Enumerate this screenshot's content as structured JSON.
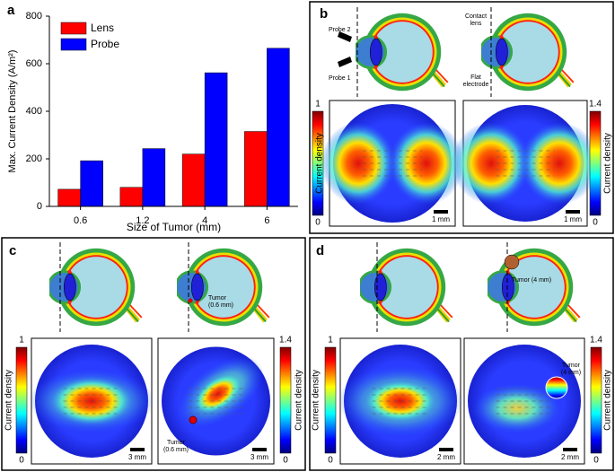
{
  "chart_data": {
    "type": "bar",
    "label": "a",
    "categories": [
      "0.6",
      "1.2",
      "4",
      "6"
    ],
    "series": [
      {
        "name": "Lens",
        "color": "#ff0000",
        "values": [
          72,
          80,
          220,
          315
        ]
      },
      {
        "name": "Probe",
        "color": "#0000ff",
        "values": [
          192,
          243,
          562,
          665
        ]
      }
    ],
    "ylim": [
      0,
      800
    ],
    "yticks": [
      0,
      200,
      400,
      600,
      800
    ],
    "ylabel": "Max. Current Density (A/m²)",
    "xlabel": "Size of Tumor (mm)"
  },
  "panels": [
    {
      "label": "b",
      "annotations": [
        [
          "Probe 2"
        ],
        [
          "Probe 1"
        ],
        [
          "Contact",
          "lens"
        ],
        [
          "Flat",
          "electrode"
        ]
      ],
      "colorbars": [
        {
          "max": 1,
          "min": 0,
          "title": "Current density"
        },
        {
          "max": 1.4,
          "min": 0,
          "title": "Current density"
        }
      ],
      "scale_bars": [
        "1 mm",
        "1 mm"
      ]
    },
    {
      "label": "c",
      "annotations": [
        [
          "Tumor",
          "(0.6 mm)"
        ],
        [
          "Tumor",
          "(0.6 mm)"
        ]
      ],
      "colorbars": [
        {
          "max": 1,
          "min": 0,
          "title": "Current density"
        },
        {
          "max": 1.4,
          "min": 0,
          "title": "Current density"
        }
      ],
      "scale_bars": [
        "3 mm",
        "3 mm"
      ]
    },
    {
      "label": "d",
      "annotations": [
        [
          "Tumor (4 mm)"
        ],
        [
          "Tumor",
          "(4 mm)"
        ]
      ],
      "colorbars": [
        {
          "max": 1,
          "min": 0,
          "title": "Current density"
        },
        {
          "max": 1.4,
          "min": 0,
          "title": "Current density"
        }
      ],
      "scale_bars": [
        "2 mm",
        "2 mm"
      ]
    }
  ]
}
